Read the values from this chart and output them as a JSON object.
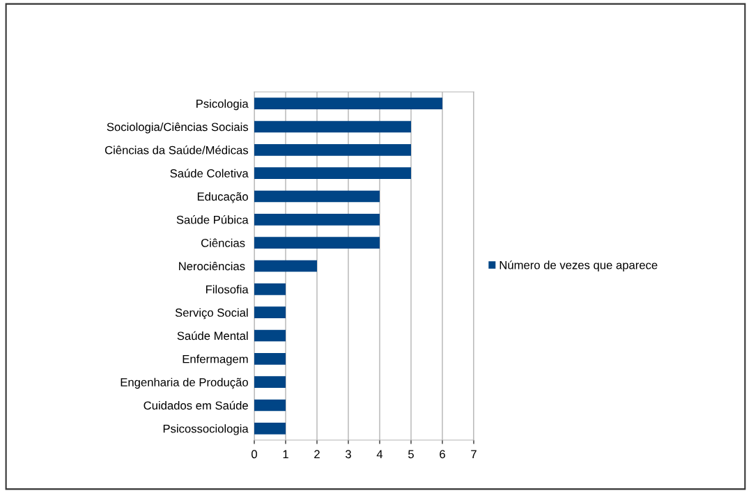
{
  "chart_data": {
    "type": "bar",
    "orientation": "horizontal",
    "categories": [
      "Psicologia",
      "Sociologia/Ciências Sociais",
      "Ciências da Saúde/Médicas",
      "Saúde Coletiva",
      "Educação",
      "Saúde Púbica",
      "Ciências ",
      "Nerociências ",
      "Filosofia",
      "Serviço Social",
      "Saúde Mental",
      "Enfermagem",
      "Engenharia de Produção",
      "Cuidados em Saúde",
      "Psicossociologia"
    ],
    "series": [
      {
        "name": "Número de vezes que aparece",
        "color": "#004586",
        "values": [
          6,
          5,
          5,
          5,
          4,
          4,
          4,
          2,
          1,
          1,
          1,
          1,
          1,
          1,
          1
        ]
      }
    ],
    "xlim": [
      0,
      7
    ],
    "xticks": [
      0,
      1,
      2,
      3,
      4,
      5,
      6,
      7
    ],
    "grid": "x",
    "legend": "right"
  }
}
